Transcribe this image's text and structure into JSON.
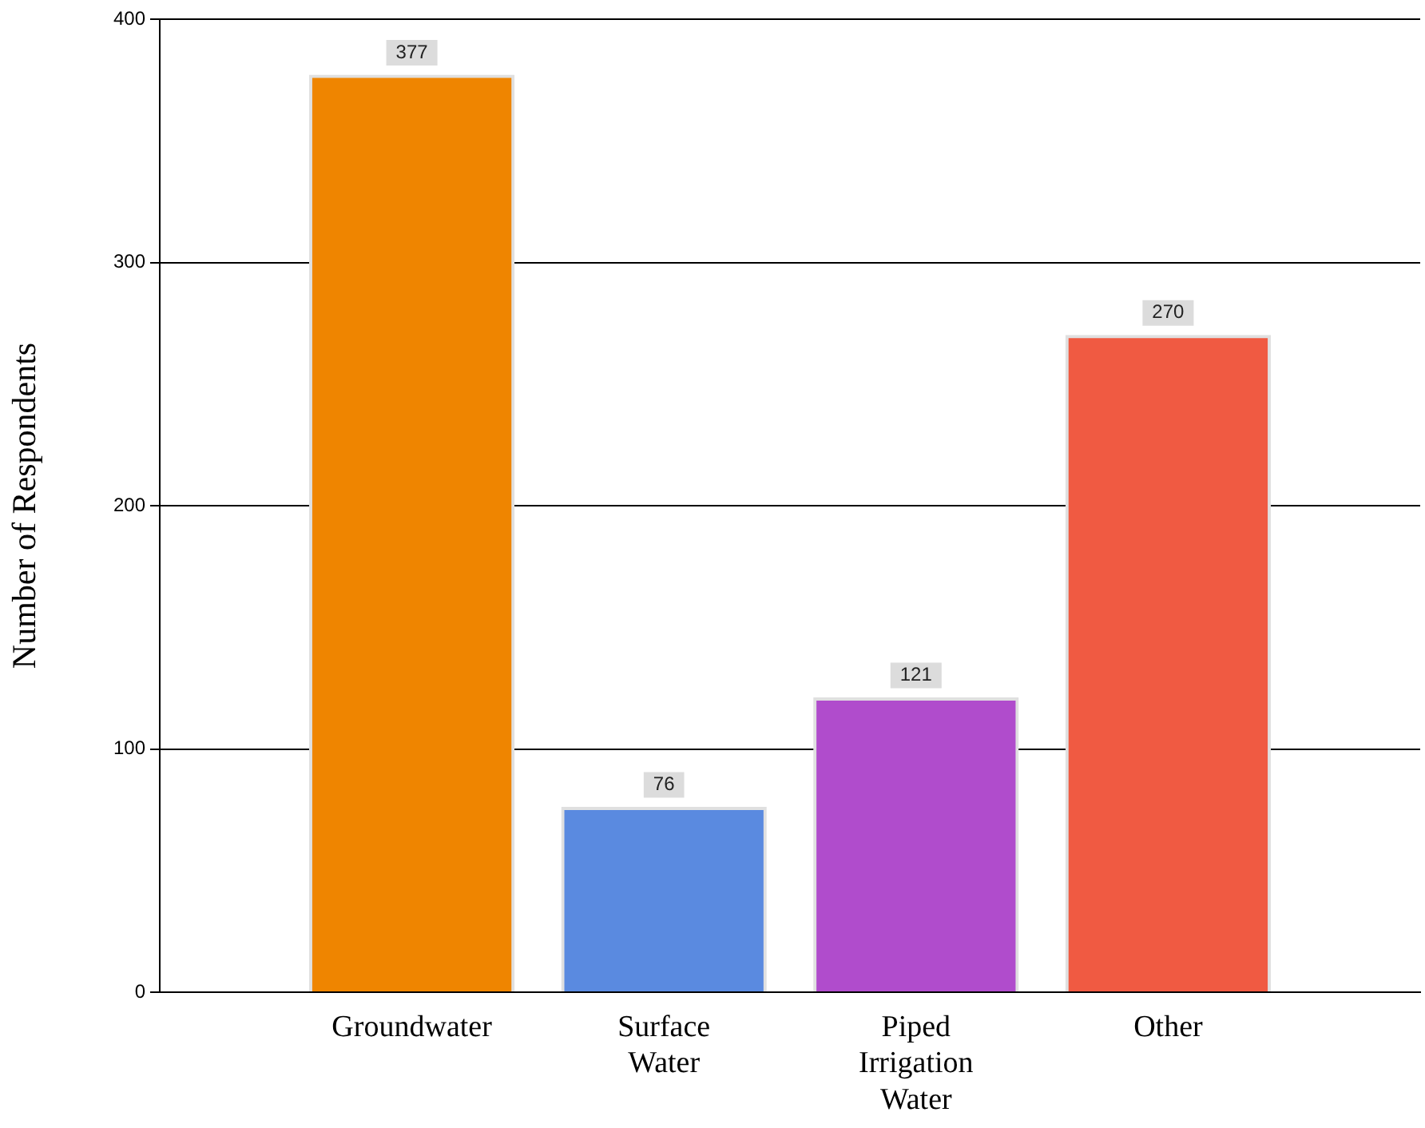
{
  "chart_data": {
    "type": "bar",
    "ylabel": "Number of Respondents",
    "categories": [
      "Groundwater",
      "Surface Water",
      "Piped Irrigation Water",
      "Other"
    ],
    "values": [
      377,
      76,
      121,
      270
    ],
    "colors": [
      "#ef8500",
      "#5a8ae0",
      "#b04ccc",
      "#f05a42"
    ],
    "ylim": [
      0,
      400
    ],
    "yticks": [
      0,
      100,
      200,
      300,
      400
    ],
    "grid": "y",
    "data_labels": true,
    "legend": false
  }
}
